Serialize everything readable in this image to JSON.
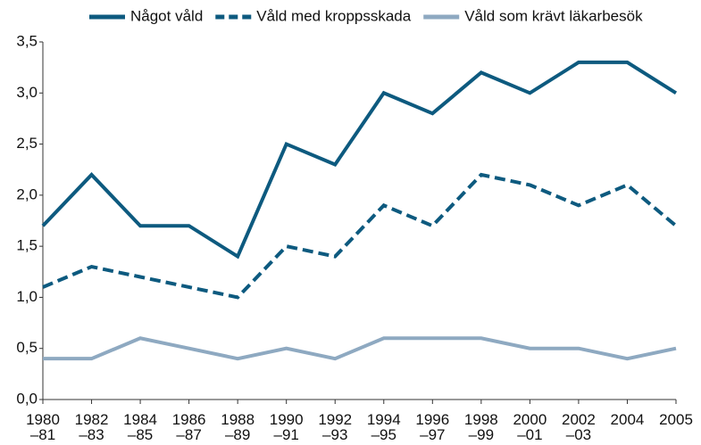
{
  "chart_data": {
    "type": "line",
    "categories": [
      [
        "1980",
        "–81"
      ],
      [
        "1982",
        "–83"
      ],
      [
        "1984",
        "–85"
      ],
      [
        "1986",
        "–87"
      ],
      [
        "1988",
        "–89"
      ],
      [
        "1990",
        "–91"
      ],
      [
        "1992",
        "–93"
      ],
      [
        "1994",
        "–95"
      ],
      [
        "1996",
        "–97"
      ],
      [
        "1998",
        "–99"
      ],
      [
        "2000",
        "–01"
      ],
      [
        "2002",
        "–03"
      ],
      [
        "2004"
      ],
      [
        "2005"
      ]
    ],
    "series": [
      {
        "name": "Något våld",
        "color": "#0d5a7f",
        "line_style": "solid",
        "values": [
          1.7,
          2.2,
          1.7,
          1.7,
          1.4,
          2.5,
          2.3,
          3.0,
          2.8,
          3.2,
          3.0,
          3.3,
          3.3,
          3.0
        ]
      },
      {
        "name": "Våld med kroppsskada",
        "color": "#0d5a7f",
        "line_style": "dashed",
        "values": [
          1.1,
          1.3,
          1.2,
          1.1,
          1.0,
          1.5,
          1.4,
          1.9,
          1.7,
          2.2,
          2.1,
          1.9,
          2.1,
          1.7
        ]
      },
      {
        "name": "Våld som krävt läkarbesök",
        "color": "#8ea9c1",
        "line_style": "solid",
        "values": [
          0.4,
          0.4,
          0.6,
          0.5,
          0.4,
          0.5,
          0.4,
          0.6,
          0.6,
          0.6,
          0.5,
          0.5,
          0.4,
          0.5
        ]
      }
    ],
    "ylim": [
      0,
      3.5
    ],
    "yticks": [
      {
        "value": 0,
        "label": "0,0"
      },
      {
        "value": 0.5,
        "label": "0,5"
      },
      {
        "value": 1,
        "label": "1,0"
      },
      {
        "value": 1.5,
        "label": "1,5"
      },
      {
        "value": 2,
        "label": "2,0"
      },
      {
        "value": 2.5,
        "label": "2,5"
      },
      {
        "value": 3,
        "label": "3,0"
      },
      {
        "value": 3.5,
        "label": "3,5"
      }
    ],
    "legend": "top"
  }
}
